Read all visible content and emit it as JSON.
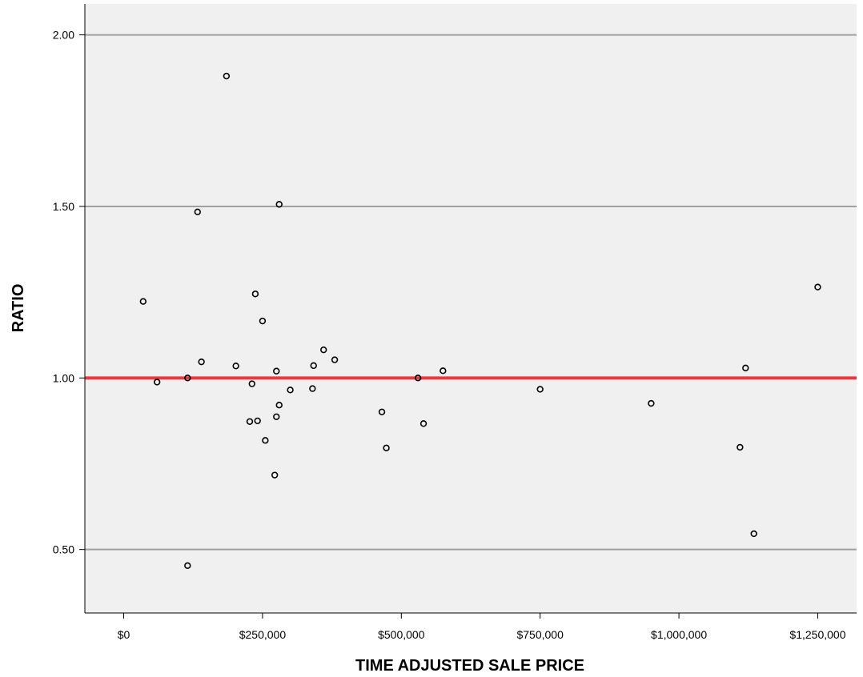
{
  "chart_data": {
    "type": "scatter",
    "title": "",
    "xlabel": "TIME ADJUSTED SALE PRICE",
    "ylabel": "RATIO",
    "xlim": [
      -70000,
      1320000
    ],
    "ylim": [
      0.315,
      2.09
    ],
    "x_ticks": [
      0,
      250000,
      500000,
      750000,
      1000000,
      1250000
    ],
    "x_tick_labels": [
      "$0",
      "$250,000",
      "$500,000",
      "$750,000",
      "$1,000,000",
      "$1,250,000"
    ],
    "y_ticks": [
      0.5,
      1.0,
      1.5,
      2.0
    ],
    "y_tick_labels": [
      "0.50",
      "1.00",
      "1.50",
      "2.00"
    ],
    "y_gridlines": [
      0.5,
      1.5,
      2.0
    ],
    "reference_line": {
      "y": 1.0,
      "color": "#e8393c"
    },
    "grid": true,
    "plot_background": "#f0f0f0",
    "marker_color": "#000000",
    "points": [
      {
        "x": 35000,
        "y": 1.223
      },
      {
        "x": 60000,
        "y": 0.988
      },
      {
        "x": 115000,
        "y": 1.0
      },
      {
        "x": 115000,
        "y": 0.453
      },
      {
        "x": 133000,
        "y": 1.484
      },
      {
        "x": 140000,
        "y": 1.047
      },
      {
        "x": 185000,
        "y": 1.88
      },
      {
        "x": 202000,
        "y": 1.035
      },
      {
        "x": 227000,
        "y": 0.873
      },
      {
        "x": 231000,
        "y": 0.983
      },
      {
        "x": 237000,
        "y": 1.245
      },
      {
        "x": 241000,
        "y": 0.875
      },
      {
        "x": 250000,
        "y": 1.166
      },
      {
        "x": 255000,
        "y": 0.818
      },
      {
        "x": 272000,
        "y": 0.717
      },
      {
        "x": 275000,
        "y": 1.02
      },
      {
        "x": 275000,
        "y": 0.887
      },
      {
        "x": 280000,
        "y": 1.506
      },
      {
        "x": 280000,
        "y": 0.921
      },
      {
        "x": 300000,
        "y": 0.965
      },
      {
        "x": 340000,
        "y": 0.969
      },
      {
        "x": 342000,
        "y": 1.036
      },
      {
        "x": 360000,
        "y": 1.082
      },
      {
        "x": 380000,
        "y": 1.053
      },
      {
        "x": 465000,
        "y": 0.901
      },
      {
        "x": 473000,
        "y": 0.796
      },
      {
        "x": 530000,
        "y": 1.0
      },
      {
        "x": 540000,
        "y": 0.867
      },
      {
        "x": 575000,
        "y": 1.021
      },
      {
        "x": 750000,
        "y": 0.967
      },
      {
        "x": 950000,
        "y": 0.926
      },
      {
        "x": 1110000,
        "y": 0.798
      },
      {
        "x": 1120000,
        "y": 1.029
      },
      {
        "x": 1135000,
        "y": 0.546
      },
      {
        "x": 1250000,
        "y": 1.265
      }
    ]
  }
}
